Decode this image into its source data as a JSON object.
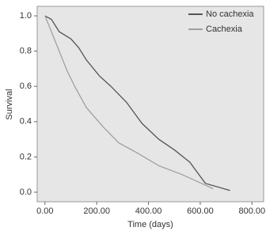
{
  "chart_data": {
    "type": "line",
    "x_label": "Time (days)",
    "y_label": "Survival",
    "xlim": [
      -30,
      845
    ],
    "ylim": [
      -0.054,
      1.054
    ],
    "xticks": [
      {
        "value": 0,
        "label": "0.00"
      },
      {
        "value": 200,
        "label": "200.00"
      },
      {
        "value": 400,
        "label": "400.00"
      },
      {
        "value": 600,
        "label": "600.00"
      },
      {
        "value": 800,
        "label": "800.00"
      }
    ],
    "yticks": [
      {
        "value": 0,
        "label": "0.0"
      },
      0.2,
      0.4,
      0.6,
      0.8,
      {
        "value": 1,
        "label": "1.0"
      }
    ],
    "legend": "top-right",
    "series": [
      {
        "name": "No cachexia",
        "color": "#555555",
        "x": [
          0,
          25,
          55,
          100,
          130,
          160,
          210,
          255,
          315,
          375,
          440,
          500,
          560,
          620,
          715
        ],
        "values": [
          1.0,
          0.98,
          0.91,
          0.87,
          0.82,
          0.75,
          0.66,
          0.6,
          0.51,
          0.39,
          0.3,
          0.24,
          0.17,
          0.05,
          0.01
        ]
      },
      {
        "name": "Cachexia",
        "color": "#a0a0a0",
        "x": [
          0,
          25,
          55,
          85,
          115,
          160,
          225,
          285,
          360,
          440,
          530,
          605,
          650
        ],
        "values": [
          1.0,
          0.91,
          0.8,
          0.69,
          0.6,
          0.48,
          0.37,
          0.28,
          0.22,
          0.15,
          0.1,
          0.05,
          0.02
        ]
      }
    ]
  }
}
